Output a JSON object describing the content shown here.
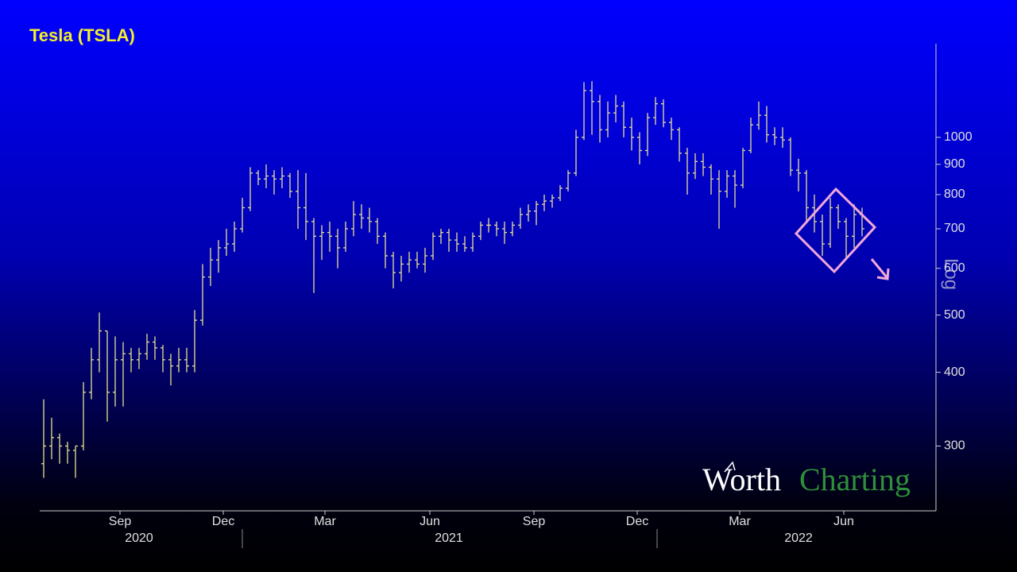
{
  "chart_data": {
    "type": "ohlc",
    "title": "Tesla (TSLA)",
    "axis_label": "Log",
    "watermark": {
      "first": "Worth",
      "second": "Charting"
    },
    "color": "#e8e290",
    "log_scale": true,
    "ylim": [
      233,
      1441
    ],
    "yticks": [
      300,
      400,
      500,
      600,
      700,
      800,
      900,
      1000
    ],
    "xlim": [
      -0.5,
      112
    ],
    "xticks": [
      {
        "value": 9.6,
        "label": "Sep"
      },
      {
        "value": 22.6,
        "label": "Dec"
      },
      {
        "value": 35.4,
        "label": "Mar"
      },
      {
        "value": 48.6,
        "label": "Jun"
      },
      {
        "value": 61.7,
        "label": "Sep"
      },
      {
        "value": 74.7,
        "label": "Dec"
      },
      {
        "value": 87.6,
        "label": "Mar"
      },
      {
        "value": 100.7,
        "label": "Jun"
      }
    ],
    "year_labels": [
      {
        "value": 12,
        "label": "2020"
      },
      {
        "value": 51,
        "label": "2021"
      },
      {
        "value": 95,
        "label": "2022"
      }
    ],
    "categories": [
      null,
      null,
      null,
      null,
      null,
      null,
      null,
      null,
      null,
      null,
      null,
      null,
      null,
      null,
      null,
      null,
      null,
      null,
      null,
      null,
      null,
      null,
      null,
      null,
      null,
      null,
      null,
      null,
      null,
      null,
      null,
      null,
      null,
      null,
      null,
      null,
      null,
      null,
      null,
      null,
      null,
      null,
      null,
      null,
      null,
      null,
      null,
      null,
      null,
      null,
      null,
      null,
      null,
      null,
      null,
      null,
      null,
      null,
      null,
      null,
      null,
      null,
      null,
      null,
      null,
      null,
      null,
      null,
      null,
      null,
      null,
      null,
      null,
      null,
      null,
      null,
      null,
      null,
      null,
      null,
      null,
      null,
      null,
      null,
      null,
      null,
      null,
      null,
      null,
      null,
      null,
      null,
      null,
      null,
      null,
      null,
      null,
      null,
      null,
      null,
      null,
      null,
      null,
      null
    ],
    "open": [
      280,
      300,
      310,
      300,
      295,
      300,
      370,
      420,
      470,
      370,
      420,
      430,
      420,
      430,
      450,
      440,
      420,
      410,
      420,
      410,
      490,
      580,
      620,
      650,
      660,
      700,
      760,
      870,
      850,
      860,
      850,
      860,
      810,
      760,
      720,
      680,
      690,
      680,
      650,
      700,
      740,
      730,
      720,
      680,
      630,
      590,
      610,
      620,
      610,
      630,
      680,
      690,
      670,
      660,
      650,
      680,
      710,
      710,
      700,
      690,
      710,
      740,
      750,
      770,
      780,
      790,
      820,
      870,
      1000,
      1200,
      1150,
      1030,
      1100,
      1130,
      1040,
      1000,
      950,
      1080,
      1140,
      1060,
      1030,
      940,
      870,
      910,
      890,
      850,
      810,
      860,
      830,
      950,
      1050,
      1090,
      1010,
      1000,
      990,
      880,
      870,
      760,
      720,
      660,
      760,
      720,
      680,
      740
    ],
    "high": [
      360,
      335,
      315,
      305,
      300,
      385,
      440,
      505,
      470,
      460,
      450,
      440,
      440,
      465,
      460,
      445,
      430,
      440,
      440,
      510,
      610,
      650,
      670,
      700,
      720,
      790,
      890,
      880,
      900,
      880,
      890,
      870,
      880,
      870,
      730,
      710,
      720,
      700,
      720,
      780,
      770,
      760,
      730,
      690,
      640,
      630,
      640,
      640,
      650,
      690,
      700,
      700,
      690,
      680,
      690,
      720,
      730,
      720,
      720,
      720,
      760,
      770,
      780,
      800,
      800,
      830,
      880,
      1030,
      1240,
      1245,
      1180,
      1150,
      1180,
      1150,
      1080,
      1020,
      1100,
      1170,
      1160,
      1080,
      1040,
      960,
      940,
      940,
      900,
      880,
      880,
      880,
      960,
      1080,
      1150,
      1130,
      1040,
      1040,
      1000,
      920,
      880,
      800,
      740,
      790,
      770,
      730,
      770,
      760
    ],
    "low": [
      265,
      285,
      280,
      280,
      265,
      295,
      360,
      400,
      330,
      350,
      350,
      400,
      405,
      420,
      420,
      400,
      380,
      400,
      400,
      400,
      480,
      560,
      590,
      630,
      640,
      690,
      750,
      830,
      820,
      800,
      820,
      790,
      700,
      670,
      545,
      620,
      640,
      600,
      640,
      680,
      700,
      690,
      660,
      600,
      555,
      570,
      590,
      600,
      590,
      620,
      660,
      640,
      640,
      640,
      640,
      670,
      690,
      680,
      660,
      680,
      700,
      720,
      710,
      750,
      760,
      780,
      810,
      860,
      990,
      1010,
      980,
      1000,
      1060,
      1000,
      950,
      900,
      930,
      1050,
      1040,
      990,
      910,
      800,
      850,
      860,
      800,
      700,
      790,
      760,
      820,
      940,
      1030,
      980,
      970,
      960,
      860,
      810,
      720,
      690,
      630,
      650,
      700,
      620,
      650,
      680
    ],
    "close": [
      300,
      310,
      300,
      295,
      300,
      370,
      420,
      470,
      370,
      420,
      430,
      420,
      430,
      450,
      440,
      420,
      410,
      420,
      410,
      490,
      580,
      620,
      650,
      660,
      700,
      760,
      870,
      850,
      860,
      850,
      860,
      810,
      760,
      720,
      680,
      690,
      680,
      650,
      700,
      740,
      730,
      720,
      680,
      630,
      590,
      610,
      620,
      610,
      630,
      680,
      690,
      670,
      660,
      650,
      680,
      710,
      710,
      700,
      690,
      710,
      740,
      750,
      770,
      780,
      790,
      820,
      870,
      1000,
      1200,
      1150,
      1030,
      1100,
      1130,
      1040,
      1000,
      950,
      1080,
      1140,
      1060,
      1030,
      940,
      870,
      910,
      890,
      850,
      810,
      860,
      830,
      950,
      1050,
      1090,
      1010,
      1000,
      990,
      880,
      870,
      760,
      720,
      660,
      760,
      720,
      680,
      740,
      700
    ]
  }
}
